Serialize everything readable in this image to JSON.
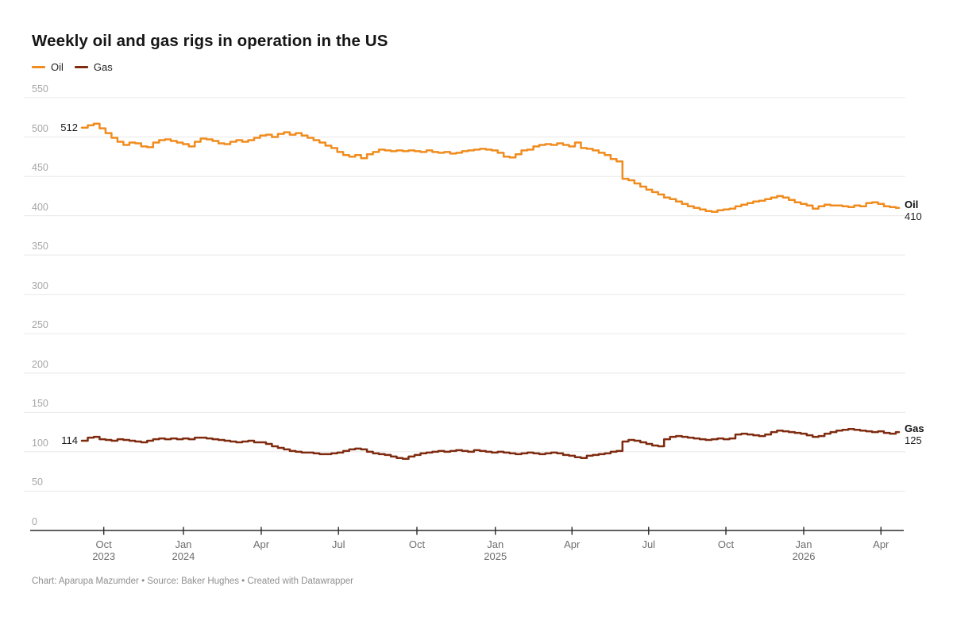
{
  "header": {
    "title": "Weekly oil and gas rigs in operation in the US"
  },
  "footer": {
    "credit": "Chart: Aparupa Mazumder • Source: Baker Hughes • Created with Datawrapper"
  },
  "colors": {
    "oil": "#f08c1e",
    "gas": "#7f2b10",
    "gridline": "#e8e8e8",
    "axis_line": "#2b2b2b",
    "y_tick_text": "#a6a6a6",
    "x_tick_text": "#6e6e6e"
  },
  "chart_data": {
    "type": "line",
    "step": true,
    "title": "Weekly oil and gas rigs in operation in the US",
    "xlabel": "",
    "ylabel": "",
    "ylim": [
      0,
      550
    ],
    "y_ticks": [
      0,
      50,
      100,
      150,
      200,
      250,
      300,
      350,
      400,
      450,
      500,
      550
    ],
    "grid": "horizontal",
    "legend_position": "top-left",
    "x_unit": "weeks (Sep 2023 – Apr 2026)",
    "x_ticks": [
      {
        "label": "Oct",
        "year": "2023",
        "pos": 3.7
      },
      {
        "label": "Jan",
        "year": "2024",
        "pos": 17.1
      },
      {
        "label": "Apr",
        "year": "",
        "pos": 30.2
      },
      {
        "label": "Jul",
        "year": "",
        "pos": 43.2
      },
      {
        "label": "Oct",
        "year": "",
        "pos": 56.4
      },
      {
        "label": "Jan",
        "year": "2025",
        "pos": 69.6
      },
      {
        "label": "Apr",
        "year": "",
        "pos": 82.5
      },
      {
        "label": "Jul",
        "year": "",
        "pos": 95.4
      },
      {
        "label": "Oct",
        "year": "",
        "pos": 108.4
      },
      {
        "label": "Jan",
        "year": "2026",
        "pos": 121.5
      },
      {
        "label": "Apr",
        "year": "",
        "pos": 134.5
      }
    ],
    "series": [
      {
        "name": "Oil",
        "color": "#f08c1e",
        "start_label": "512",
        "end_label": {
          "name": "Oil",
          "value": "410"
        },
        "values": [
          512,
          515,
          517,
          511,
          505,
          499,
          494,
          490,
          493,
          492,
          488,
          487,
          493,
          496,
          497,
          495,
          493,
          491,
          488,
          494,
          498,
          497,
          495,
          492,
          491,
          494,
          496,
          494,
          496,
          499,
          502,
          503,
          500,
          504,
          506,
          503,
          505,
          502,
          499,
          496,
          493,
          489,
          486,
          481,
          477,
          475,
          477,
          473,
          478,
          481,
          484,
          483,
          482,
          483,
          482,
          483,
          482,
          481,
          483,
          481,
          480,
          481,
          479,
          480,
          482,
          483,
          484,
          485,
          484,
          483,
          480,
          475,
          474,
          478,
          483,
          484,
          488,
          490,
          491,
          490,
          492,
          490,
          488,
          493,
          486,
          485,
          483,
          480,
          477,
          472,
          469,
          447,
          445,
          441,
          437,
          433,
          430,
          427,
          423,
          421,
          418,
          415,
          412,
          410,
          408,
          406,
          405,
          407,
          408,
          409,
          412,
          414,
          416,
          418,
          419,
          421,
          423,
          425,
          423,
          420,
          417,
          415,
          413,
          409,
          412,
          414,
          413,
          413,
          412,
          411,
          413,
          412,
          416,
          417,
          415,
          412,
          411,
          410
        ]
      },
      {
        "name": "Gas",
        "color": "#7f2b10",
        "start_label": "114",
        "end_label": {
          "name": "Gas",
          "value": "125"
        },
        "values": [
          114,
          118,
          119,
          116,
          115,
          114,
          116,
          115,
          114,
          113,
          112,
          114,
          116,
          117,
          116,
          117,
          116,
          117,
          116,
          118,
          118,
          117,
          116,
          115,
          114,
          113,
          112,
          113,
          114,
          112,
          112,
          110,
          107,
          105,
          103,
          101,
          100,
          99,
          99,
          98,
          97,
          97,
          98,
          99,
          101,
          103,
          104,
          103,
          100,
          98,
          97,
          96,
          94,
          92,
          91,
          94,
          96,
          98,
          99,
          100,
          101,
          100,
          101,
          102,
          101,
          100,
          102,
          101,
          100,
          99,
          100,
          99,
          98,
          97,
          98,
          99,
          98,
          97,
          98,
          99,
          98,
          96,
          95,
          93,
          92,
          95,
          96,
          97,
          98,
          100,
          101,
          113,
          115,
          114,
          112,
          110,
          108,
          107,
          116,
          119,
          120,
          119,
          118,
          117,
          116,
          115,
          116,
          117,
          116,
          117,
          122,
          123,
          122,
          121,
          120,
          122,
          125,
          127,
          126,
          125,
          124,
          123,
          121,
          119,
          120,
          123,
          125,
          127,
          128,
          129,
          128,
          127,
          126,
          125,
          126,
          124,
          123,
          125
        ]
      }
    ]
  }
}
